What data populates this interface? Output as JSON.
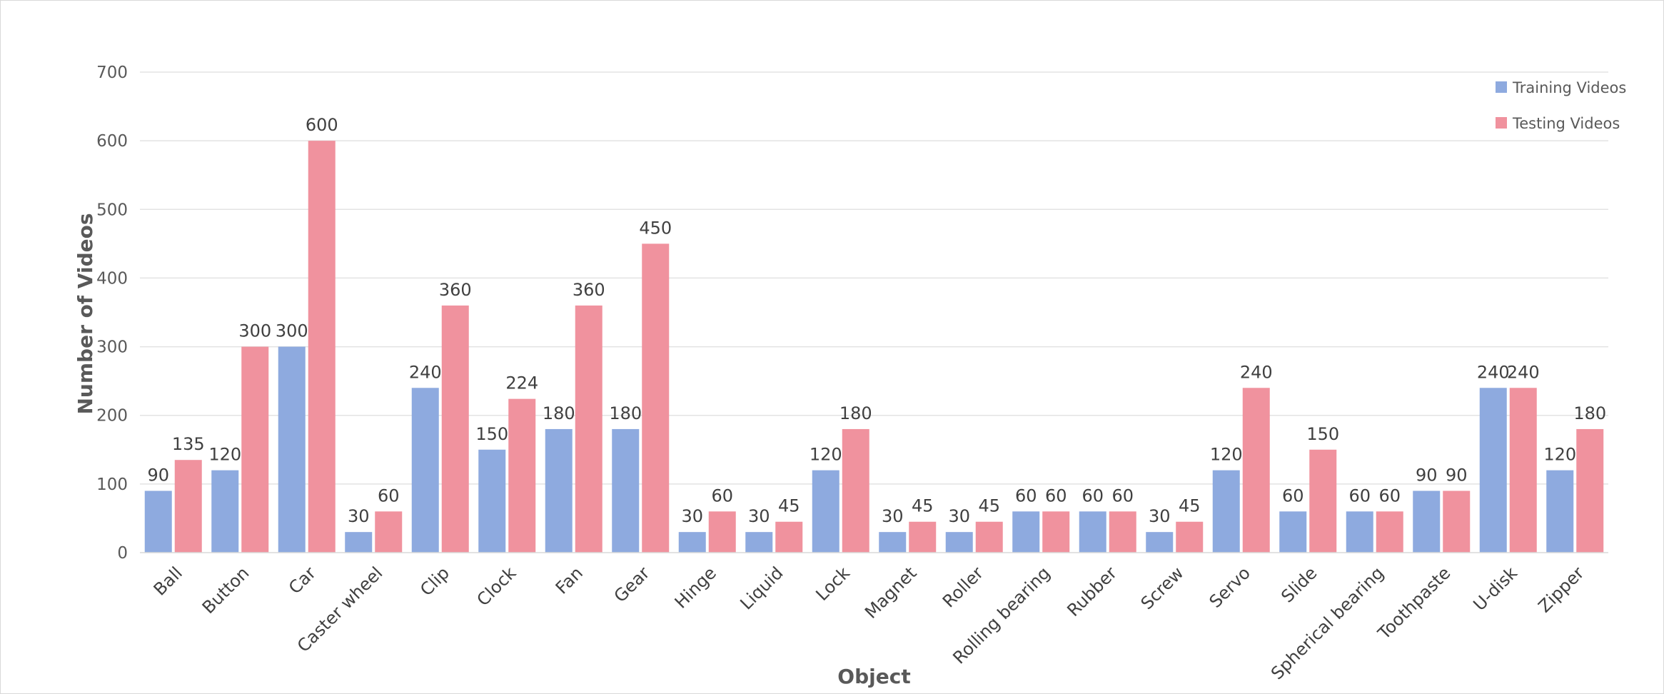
{
  "chart_data": {
    "type": "bar",
    "title": "",
    "xlabel": "Object",
    "ylabel": "Number of Videos",
    "ylim": [
      0,
      700
    ],
    "yticks": [
      0,
      100,
      200,
      300,
      400,
      500,
      600,
      700
    ],
    "grid": true,
    "legend_position": "top-right",
    "categories": [
      "Ball",
      "Button",
      "Car",
      "Caster wheel",
      "Clip",
      "Clock",
      "Fan",
      "Gear",
      "Hinge",
      "Liquid",
      "Lock",
      "Magnet",
      "Roller",
      "Rolling bearing",
      "Rubber",
      "Screw",
      "Servo",
      "Slide",
      "Spherical bearing",
      "Toothpaste",
      "U-disk",
      "Zipper"
    ],
    "series": [
      {
        "name": "Training Videos",
        "color": "#8eaadf",
        "values": [
          90,
          120,
          300,
          30,
          240,
          150,
          180,
          180,
          30,
          30,
          120,
          30,
          30,
          60,
          60,
          30,
          120,
          60,
          60,
          90,
          240,
          120
        ]
      },
      {
        "name": "Testing Videos",
        "color": "#f0929e",
        "values": [
          135,
          300,
          600,
          60,
          360,
          224,
          360,
          450,
          60,
          45,
          180,
          45,
          45,
          60,
          60,
          45,
          240,
          150,
          60,
          90,
          240,
          180
        ]
      }
    ]
  }
}
